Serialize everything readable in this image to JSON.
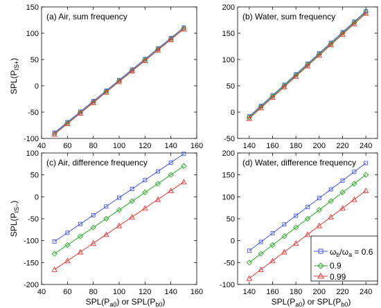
{
  "figure": {
    "ylabel_top_base": "SPL(P",
    "ylabel_top_sub": "IS+",
    "ylabel_top_end": ")",
    "ylabel_bottom_base": "SPL(P",
    "ylabel_bottom_sub": "IS−",
    "ylabel_bottom_end": ")",
    "xlabel_left": {
      "p1": "SPL(P",
      "s1": "a0",
      "p2": ") or SPL(P",
      "s2": "b0",
      "p3": ")"
    },
    "xlabel_right": {
      "p1": "SPL(P",
      "s1": "a0",
      "p2": ") or SPL(P",
      "s2": "b0",
      "p3": ")"
    },
    "legend": {
      "entries": [
        {
          "label_html_parts": [
            "ω",
            "b",
            "/ω",
            "a",
            " = 0.6"
          ]
        },
        {
          "label": "0.9"
        },
        {
          "label": "0.99"
        }
      ]
    }
  },
  "colors": {
    "blue": "#4455ee",
    "green": "#22aa22",
    "red": "#ee3333",
    "black": "#000000"
  },
  "chart_data": [
    {
      "type": "line",
      "title": "(a) Air, sum frequency",
      "x": [
        50,
        60,
        70,
        80,
        90,
        100,
        110,
        120,
        130,
        140,
        150
      ],
      "xlim": [
        40,
        160
      ],
      "xticks": [
        40,
        60,
        80,
        100,
        120,
        140,
        160
      ],
      "ylim": [
        -100,
        150
      ],
      "yticks": [
        -100,
        -50,
        0,
        50,
        100,
        150
      ],
      "marker_series": [
        {
          "color": "blue",
          "marker": "square",
          "values": [
            -89,
            -69,
            -49,
            -29,
            -9,
            11,
            31,
            51,
            71,
            91,
            111
          ]
        },
        {
          "color": "green",
          "marker": "diamond",
          "values": [
            -91,
            -71,
            -51,
            -31,
            -11,
            9,
            29,
            49,
            69,
            89,
            109
          ]
        },
        {
          "color": "red",
          "marker": "triangle",
          "values": [
            -92,
            -72,
            -52,
            -32,
            -12,
            8,
            28,
            48,
            68,
            88,
            108
          ]
        }
      ]
    },
    {
      "type": "line",
      "title": "(b) Water, sum frequency",
      "x": [
        140,
        150,
        160,
        170,
        180,
        190,
        200,
        210,
        220,
        230,
        240
      ],
      "xlim": [
        130,
        250
      ],
      "xticks": [
        140,
        160,
        180,
        200,
        220,
        240
      ],
      "ylim": [
        -50,
        200
      ],
      "yticks": [
        -50,
        0,
        50,
        100,
        150,
        200
      ],
      "marker_series": [
        {
          "color": "blue",
          "marker": "square",
          "values": [
            -8,
            12,
            32,
            52,
            72,
            92,
            112,
            132,
            152,
            172,
            192
          ]
        },
        {
          "color": "green",
          "marker": "diamond",
          "values": [
            -10,
            10,
            30,
            50,
            70,
            90,
            110,
            130,
            150,
            170,
            190
          ]
        },
        {
          "color": "red",
          "marker": "triangle",
          "values": [
            -12,
            8,
            28,
            48,
            68,
            88,
            108,
            128,
            148,
            168,
            188
          ]
        }
      ]
    },
    {
      "type": "line",
      "title": "(c) Air, difference frequency",
      "x": [
        50,
        60,
        70,
        80,
        90,
        100,
        110,
        120,
        130,
        140,
        150
      ],
      "xlim": [
        40,
        160
      ],
      "xticks": [
        40,
        60,
        80,
        100,
        120,
        140,
        160
      ],
      "ylim": [
        -200,
        100
      ],
      "yticks": [
        -200,
        -150,
        -100,
        -50,
        0,
        50,
        100
      ],
      "marker_series": [
        {
          "color": "blue",
          "marker": "square",
          "values": [
            -102,
            -82,
            -62,
            -42,
            -22,
            -2,
            18,
            38,
            58,
            78,
            98
          ]
        },
        {
          "color": "green",
          "marker": "diamond",
          "values": [
            -130,
            -110,
            -90,
            -70,
            -50,
            -30,
            -10,
            10,
            30,
            50,
            70
          ]
        },
        {
          "color": "red",
          "marker": "triangle",
          "values": [
            -166,
            -146,
            -126,
            -106,
            -86,
            -66,
            -46,
            -26,
            -6,
            14,
            34
          ]
        }
      ]
    },
    {
      "type": "line",
      "title": "(d) Water, difference frequency",
      "x": [
        140,
        150,
        160,
        170,
        180,
        190,
        200,
        210,
        220,
        230,
        240
      ],
      "xlim": [
        130,
        250
      ],
      "xticks": [
        140,
        160,
        180,
        200,
        220,
        240
      ],
      "ylim": [
        -100,
        200
      ],
      "yticks": [
        -100,
        -50,
        0,
        50,
        100,
        150,
        200
      ],
      "marker_series": [
        {
          "color": "blue",
          "marker": "square",
          "values": [
            -23,
            -3,
            17,
            37,
            57,
            77,
            97,
            117,
            137,
            157,
            177
          ]
        },
        {
          "color": "green",
          "marker": "diamond",
          "values": [
            -50,
            -30,
            -10,
            10,
            30,
            50,
            70,
            90,
            110,
            130,
            150
          ]
        },
        {
          "color": "red",
          "marker": "triangle",
          "values": [
            -86,
            -66,
            -46,
            -26,
            -6,
            14,
            34,
            54,
            74,
            94,
            114
          ]
        }
      ]
    }
  ]
}
